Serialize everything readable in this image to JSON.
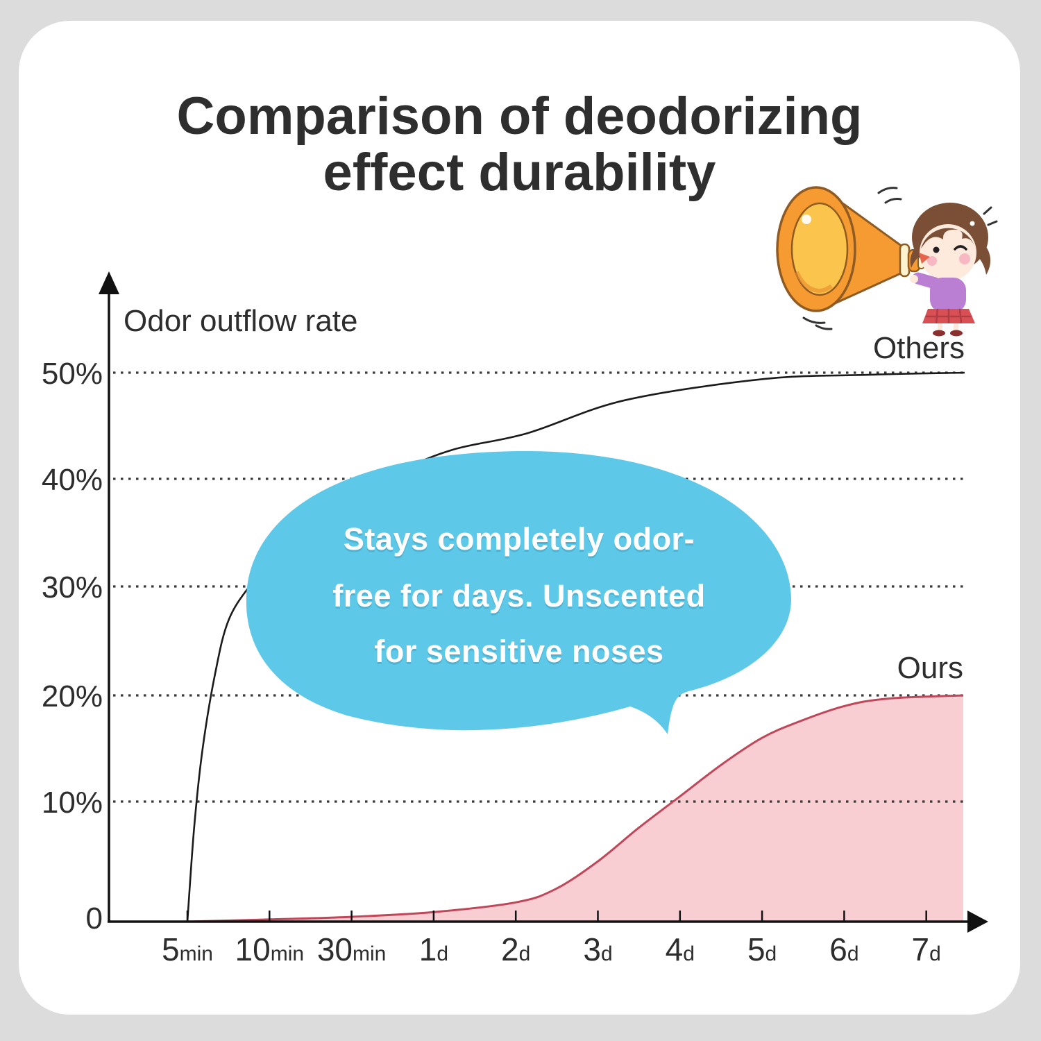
{
  "title": {
    "line1": "Comparison of deodorizing",
    "line2": "effect durability"
  },
  "bubble": {
    "lines": [
      "Stays completely odor-",
      "free for days. Unscented",
      "for sensitive noses"
    ],
    "color": "#5ec8e8",
    "text_color": "#ffffff"
  },
  "illustration": {
    "name": "girl-shouting-into-megaphone"
  },
  "colors": {
    "background": "#dcdcdc",
    "card": "#ffffff",
    "title_text": "#2e2e2e",
    "axis": "#111111",
    "others_line": "#1b1b1b",
    "ours_line": "#bf4759",
    "ours_fill": "#f8ced3",
    "bubble_blue": "#5ec8e8"
  },
  "chart_data": {
    "type": "line",
    "title": "Comparison of deodorizing effect durability",
    "ylabel": "Odor outflow rate",
    "xlabel": "",
    "ylim": [
      0,
      55
    ],
    "grid": "dotted horizontal lines at 10/20/30/40/50%",
    "legend_position": "labels at line ends (Others top right, Ours right)",
    "y_ticks": [
      {
        "label": "50%",
        "pct": 50
      },
      {
        "label": "40%",
        "pct": 40
      },
      {
        "label": "30%",
        "pct": 30
      },
      {
        "label": "20%",
        "pct": 20
      },
      {
        "label": "10%",
        "pct": 10
      },
      {
        "label": "0",
        "pct": 0
      }
    ],
    "x_ticks": [
      {
        "value": "5",
        "suffix": "min"
      },
      {
        "value": "10",
        "suffix": "min"
      },
      {
        "value": "30",
        "suffix": "min"
      },
      {
        "value": "1",
        "suffix": "d"
      },
      {
        "value": "2",
        "suffix": "d"
      },
      {
        "value": "3",
        "suffix": "d"
      },
      {
        "value": "4",
        "suffix": "d"
      },
      {
        "value": "5",
        "suffix": "d"
      },
      {
        "value": "6",
        "suffix": "d"
      },
      {
        "value": "7",
        "suffix": "d"
      }
    ],
    "categories": [
      "5min",
      "10min",
      "30min",
      "1d",
      "2d",
      "3d",
      "4d",
      "5d",
      "6d",
      "7d"
    ],
    "series": [
      {
        "name": "Others",
        "type": "line",
        "color": "#1b1b1b",
        "values_pct_at_categories": [
          0,
          32,
          38,
          42,
          44.5,
          46.5,
          48,
          49,
          49.5,
          50
        ],
        "points": [
          [
            270,
            0
          ],
          [
            280,
            8
          ],
          [
            292,
            15
          ],
          [
            310,
            22
          ],
          [
            330,
            27
          ],
          [
            365,
            30.5
          ],
          [
            420,
            35
          ],
          [
            480,
            37.8
          ],
          [
            560,
            40.3
          ],
          [
            650,
            42.7
          ],
          [
            760,
            44.3
          ],
          [
            900,
            47.4
          ],
          [
            1100,
            49.4
          ],
          [
            1250,
            49.8
          ],
          [
            1390,
            50
          ]
        ]
      },
      {
        "name": "Ours",
        "type": "area",
        "line_color": "#bf4759",
        "fill_color": "#f8ced3",
        "values_pct_at_categories": [
          0,
          0.2,
          0.4,
          0.8,
          1.6,
          5,
          10.5,
          16,
          19,
          20
        ],
        "points": [
          [
            270,
            0
          ],
          [
            400,
            0.2
          ],
          [
            506,
            0.4
          ],
          [
            625,
            0.8
          ],
          [
            743,
            1.6
          ],
          [
            800,
            2.7
          ],
          [
            861,
            5
          ],
          [
            920,
            7.8
          ],
          [
            980,
            10.5
          ],
          [
            1040,
            13.5
          ],
          [
            1098,
            16
          ],
          [
            1150,
            17.5
          ],
          [
            1217,
            19
          ],
          [
            1280,
            19.7
          ],
          [
            1388,
            20
          ]
        ]
      }
    ],
    "annotation": "Stays completely odor-free for days. Unscented for sensitive noses"
  }
}
